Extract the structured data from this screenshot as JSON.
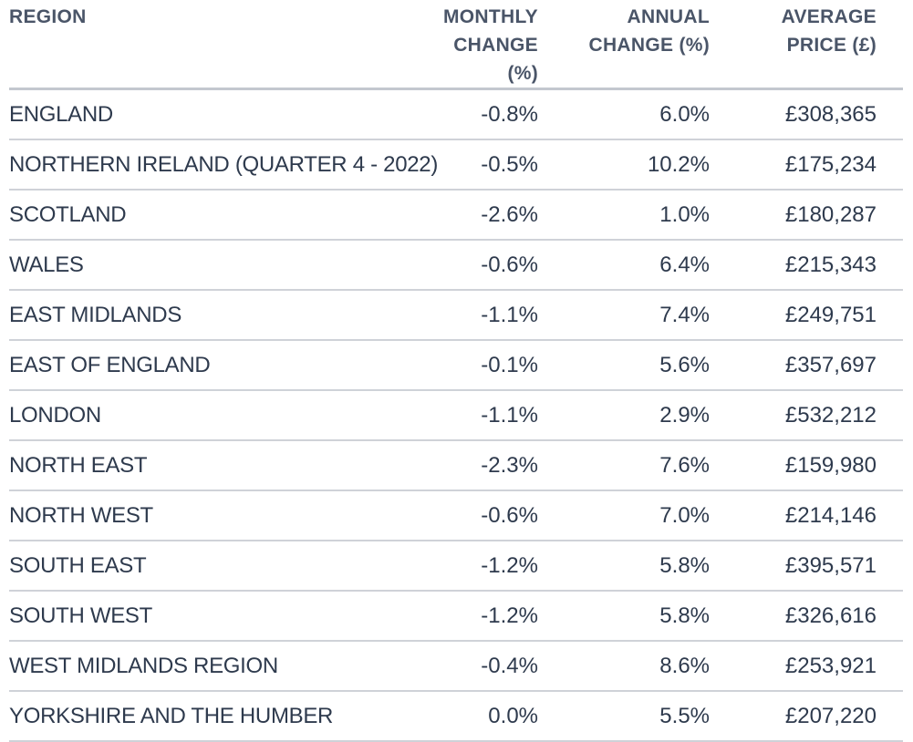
{
  "table": {
    "headers": {
      "region": "REGION",
      "monthly_line1": "MONTHLY",
      "monthly_line2": "CHANGE (%)",
      "annual_line1": "ANNUAL",
      "annual_line2": "CHANGE (%)",
      "price_line1": "AVERAGE",
      "price_line2": "PRICE (£)"
    },
    "rows": [
      {
        "region": "ENGLAND",
        "monthly": "-0.8%",
        "annual": "6.0%",
        "price": "£308,365"
      },
      {
        "region": "NORTHERN IRELAND (QUARTER 4 - 2022)",
        "monthly": "-0.5%",
        "annual": "10.2%",
        "price": "£175,234"
      },
      {
        "region": "SCOTLAND",
        "monthly": "-2.6%",
        "annual": "1.0%",
        "price": "£180,287"
      },
      {
        "region": "WALES",
        "monthly": "-0.6%",
        "annual": "6.4%",
        "price": "£215,343"
      },
      {
        "region": "EAST MIDLANDS",
        "monthly": "-1.1%",
        "annual": "7.4%",
        "price": "£249,751"
      },
      {
        "region": "EAST OF ENGLAND",
        "monthly": "-0.1%",
        "annual": "5.6%",
        "price": "£357,697"
      },
      {
        "region": "LONDON",
        "monthly": "-1.1%",
        "annual": "2.9%",
        "price": "£532,212"
      },
      {
        "region": "NORTH EAST",
        "monthly": "-2.3%",
        "annual": "7.6%",
        "price": "£159,980"
      },
      {
        "region": "NORTH WEST",
        "monthly": "-0.6%",
        "annual": "7.0%",
        "price": "£214,146"
      },
      {
        "region": "SOUTH EAST",
        "monthly": "-1.2%",
        "annual": "5.8%",
        "price": "£395,571"
      },
      {
        "region": "SOUTH WEST",
        "monthly": "-1.2%",
        "annual": "5.8%",
        "price": "£326,616"
      },
      {
        "region": "WEST MIDLANDS REGION",
        "monthly": "-0.4%",
        "annual": "8.6%",
        "price": "£253,921"
      },
      {
        "region": "YORKSHIRE AND THE HUMBER",
        "monthly": "0.0%",
        "annual": "5.5%",
        "price": "£207,220"
      }
    ]
  }
}
